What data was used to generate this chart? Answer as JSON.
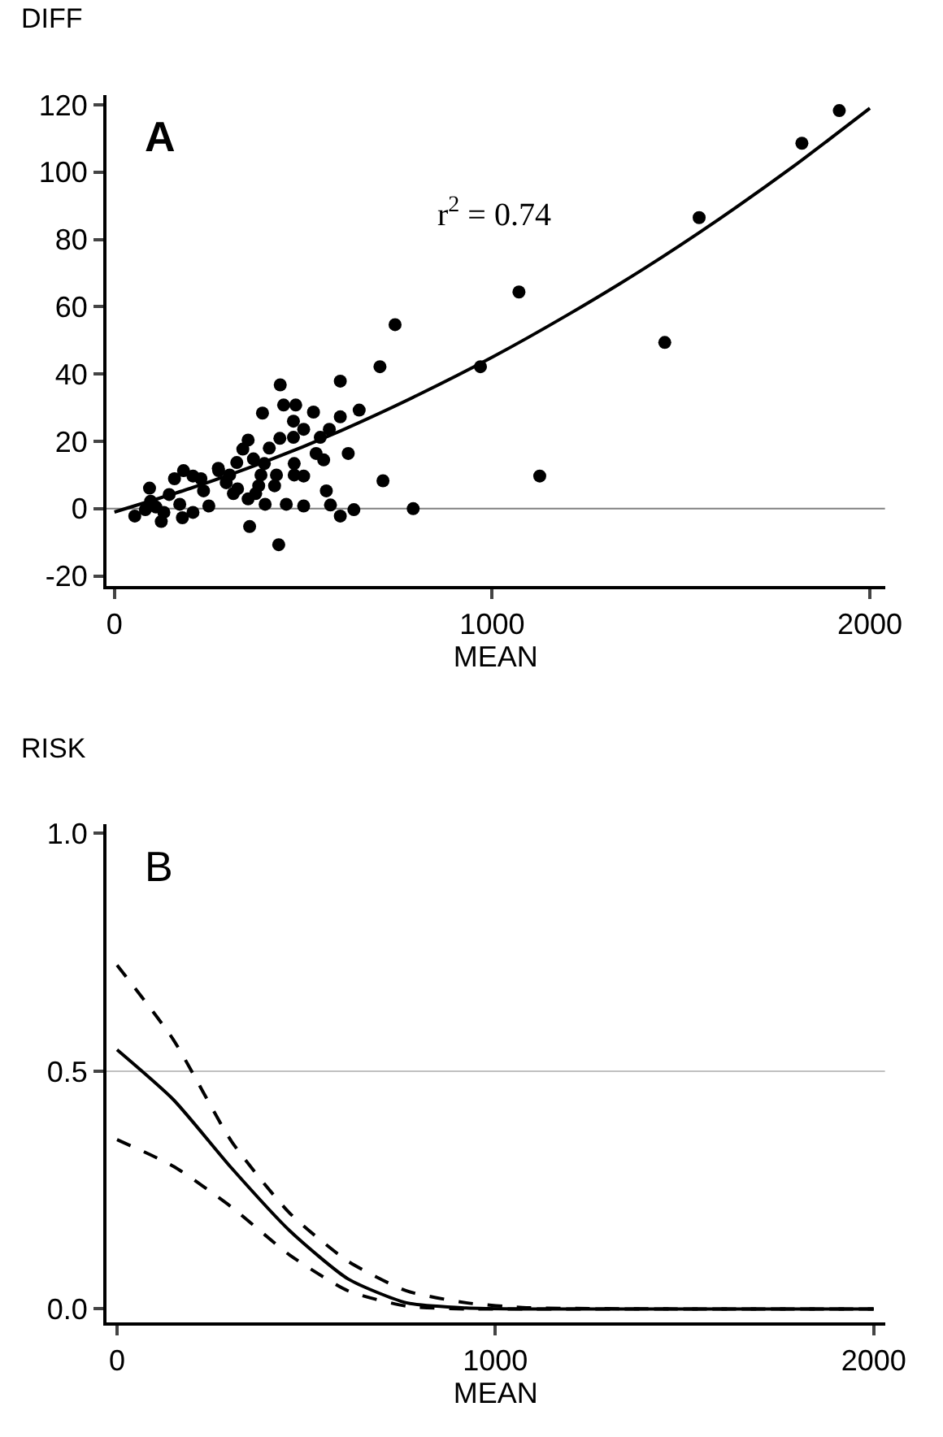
{
  "chart_data": [
    {
      "type": "scatter",
      "xlabel": "MEAN",
      "ylabel": "DIFF",
      "annotations": [
        "A",
        "r$^{2}$ = 0.74"
      ],
      "xlim": [
        -21,
        2040
      ],
      "ylim": [
        -23,
        123
      ],
      "xticks": [
        0,
        1000,
        2000
      ],
      "yticks": [
        -20,
        0,
        20,
        40,
        60,
        80,
        100,
        120
      ],
      "ref_lines": [
        {
          "axis": "y",
          "value": 0,
          "color": "#808080"
        }
      ],
      "series": [
        {
          "type": "scatter",
          "color": "#000000",
          "marker": "circle",
          "x": [
            1919,
            1820,
            1548,
            1457,
            1071,
            1126,
            969,
            743,
            703,
            711,
            791,
            598,
            648,
            598,
            619,
            634,
            598,
            572,
            561,
            554,
            534,
            545,
            569,
            527,
            501,
            480,
            448,
            439,
            392,
            474,
            474,
            438,
            410,
            354,
            340,
            368,
            397,
            324,
            275,
            305,
            296,
            315,
            354,
            374,
            399,
            424,
            429,
            455,
            476,
            501,
            501,
            476,
            358,
            435,
            388,
            382,
            229,
            236,
            250,
            208,
            180,
            173,
            183,
            159,
            208,
            145,
            93,
            96,
            131,
            124,
            82,
            54,
            110,
            276,
            326
          ],
          "values": [
            118.3,
            108.6,
            86.5,
            49.4,
            64.4,
            9.7,
            42.2,
            54.7,
            42.2,
            8.3,
            0,
            37.9,
            29.3,
            27.3,
            16.4,
            -0.3,
            -2.2,
            1.1,
            5.3,
            14.5,
            16.4,
            21.2,
            23.6,
            28.7,
            23.6,
            30.8,
            30.8,
            36.8,
            28.4,
            26,
            21.2,
            20.9,
            18,
            20.4,
            17.7,
            14.8,
            13.4,
            13.7,
            12,
            10,
            7.7,
            4.5,
            2.9,
            4.5,
            1.3,
            6.8,
            10,
            1.3,
            10,
            9.7,
            0.8,
            13.4,
            -5.3,
            -10.7,
            10,
            6.8,
            8.9,
            5.3,
            0.8,
            -1.1,
            -2.7,
            1.3,
            11.3,
            8.9,
            9.7,
            4.2,
            6.1,
            2.2,
            -1.1,
            -3.8,
            -0.3,
            -2.2,
            0.5,
            11.3,
            5.9
          ]
        },
        {
          "type": "line",
          "color": "#000000",
          "marker": "none",
          "line_style": "solid",
          "x": [
            0,
            200,
            400,
            600,
            800,
            1000,
            1200,
            1400,
            1600,
            1800,
            2000
          ],
          "values": [
            -1,
            6,
            14,
            23.2,
            33.6,
            45,
            57.6,
            71.2,
            86,
            101.9,
            119
          ]
        }
      ]
    },
    {
      "type": "line",
      "xlabel": "MEAN",
      "ylabel": "RISK",
      "annotations": [
        "B"
      ],
      "xlim": [
        -28,
        2030
      ],
      "ylim": [
        -0.028,
        1.02
      ],
      "xticks": [
        0,
        1000,
        2000
      ],
      "yticks": [
        {
          "value": 0,
          "label": "0.0"
        },
        0.5,
        {
          "value": 1,
          "label": "1.0"
        }
      ],
      "ref_lines": [
        {
          "axis": "y",
          "value": 0.5,
          "color": "#c0c0c0"
        }
      ],
      "x": [
        0,
        149,
        303,
        457,
        611,
        765,
        923,
        1072,
        1500,
        2000
      ],
      "series": [
        {
          "color": "#000000",
          "line_style": "solid",
          "marker": "none",
          "values": [
            0.545,
            0.44,
            0.296,
            0.164,
            0.063,
            0.013,
            0.002,
            0,
            0,
            0
          ]
        },
        {
          "color": "#000000",
          "line_style": "dashed",
          "marker": "none",
          "values": [
            0.723,
            0.566,
            0.352,
            0.201,
            0.1,
            0.038,
            0.013,
            0.003,
            0,
            0
          ]
        },
        {
          "color": "#000000",
          "line_style": "dashed",
          "marker": "none",
          "values": [
            0.356,
            0.3,
            0.214,
            0.113,
            0.038,
            0.006,
            0,
            0,
            0,
            0
          ]
        }
      ]
    }
  ]
}
